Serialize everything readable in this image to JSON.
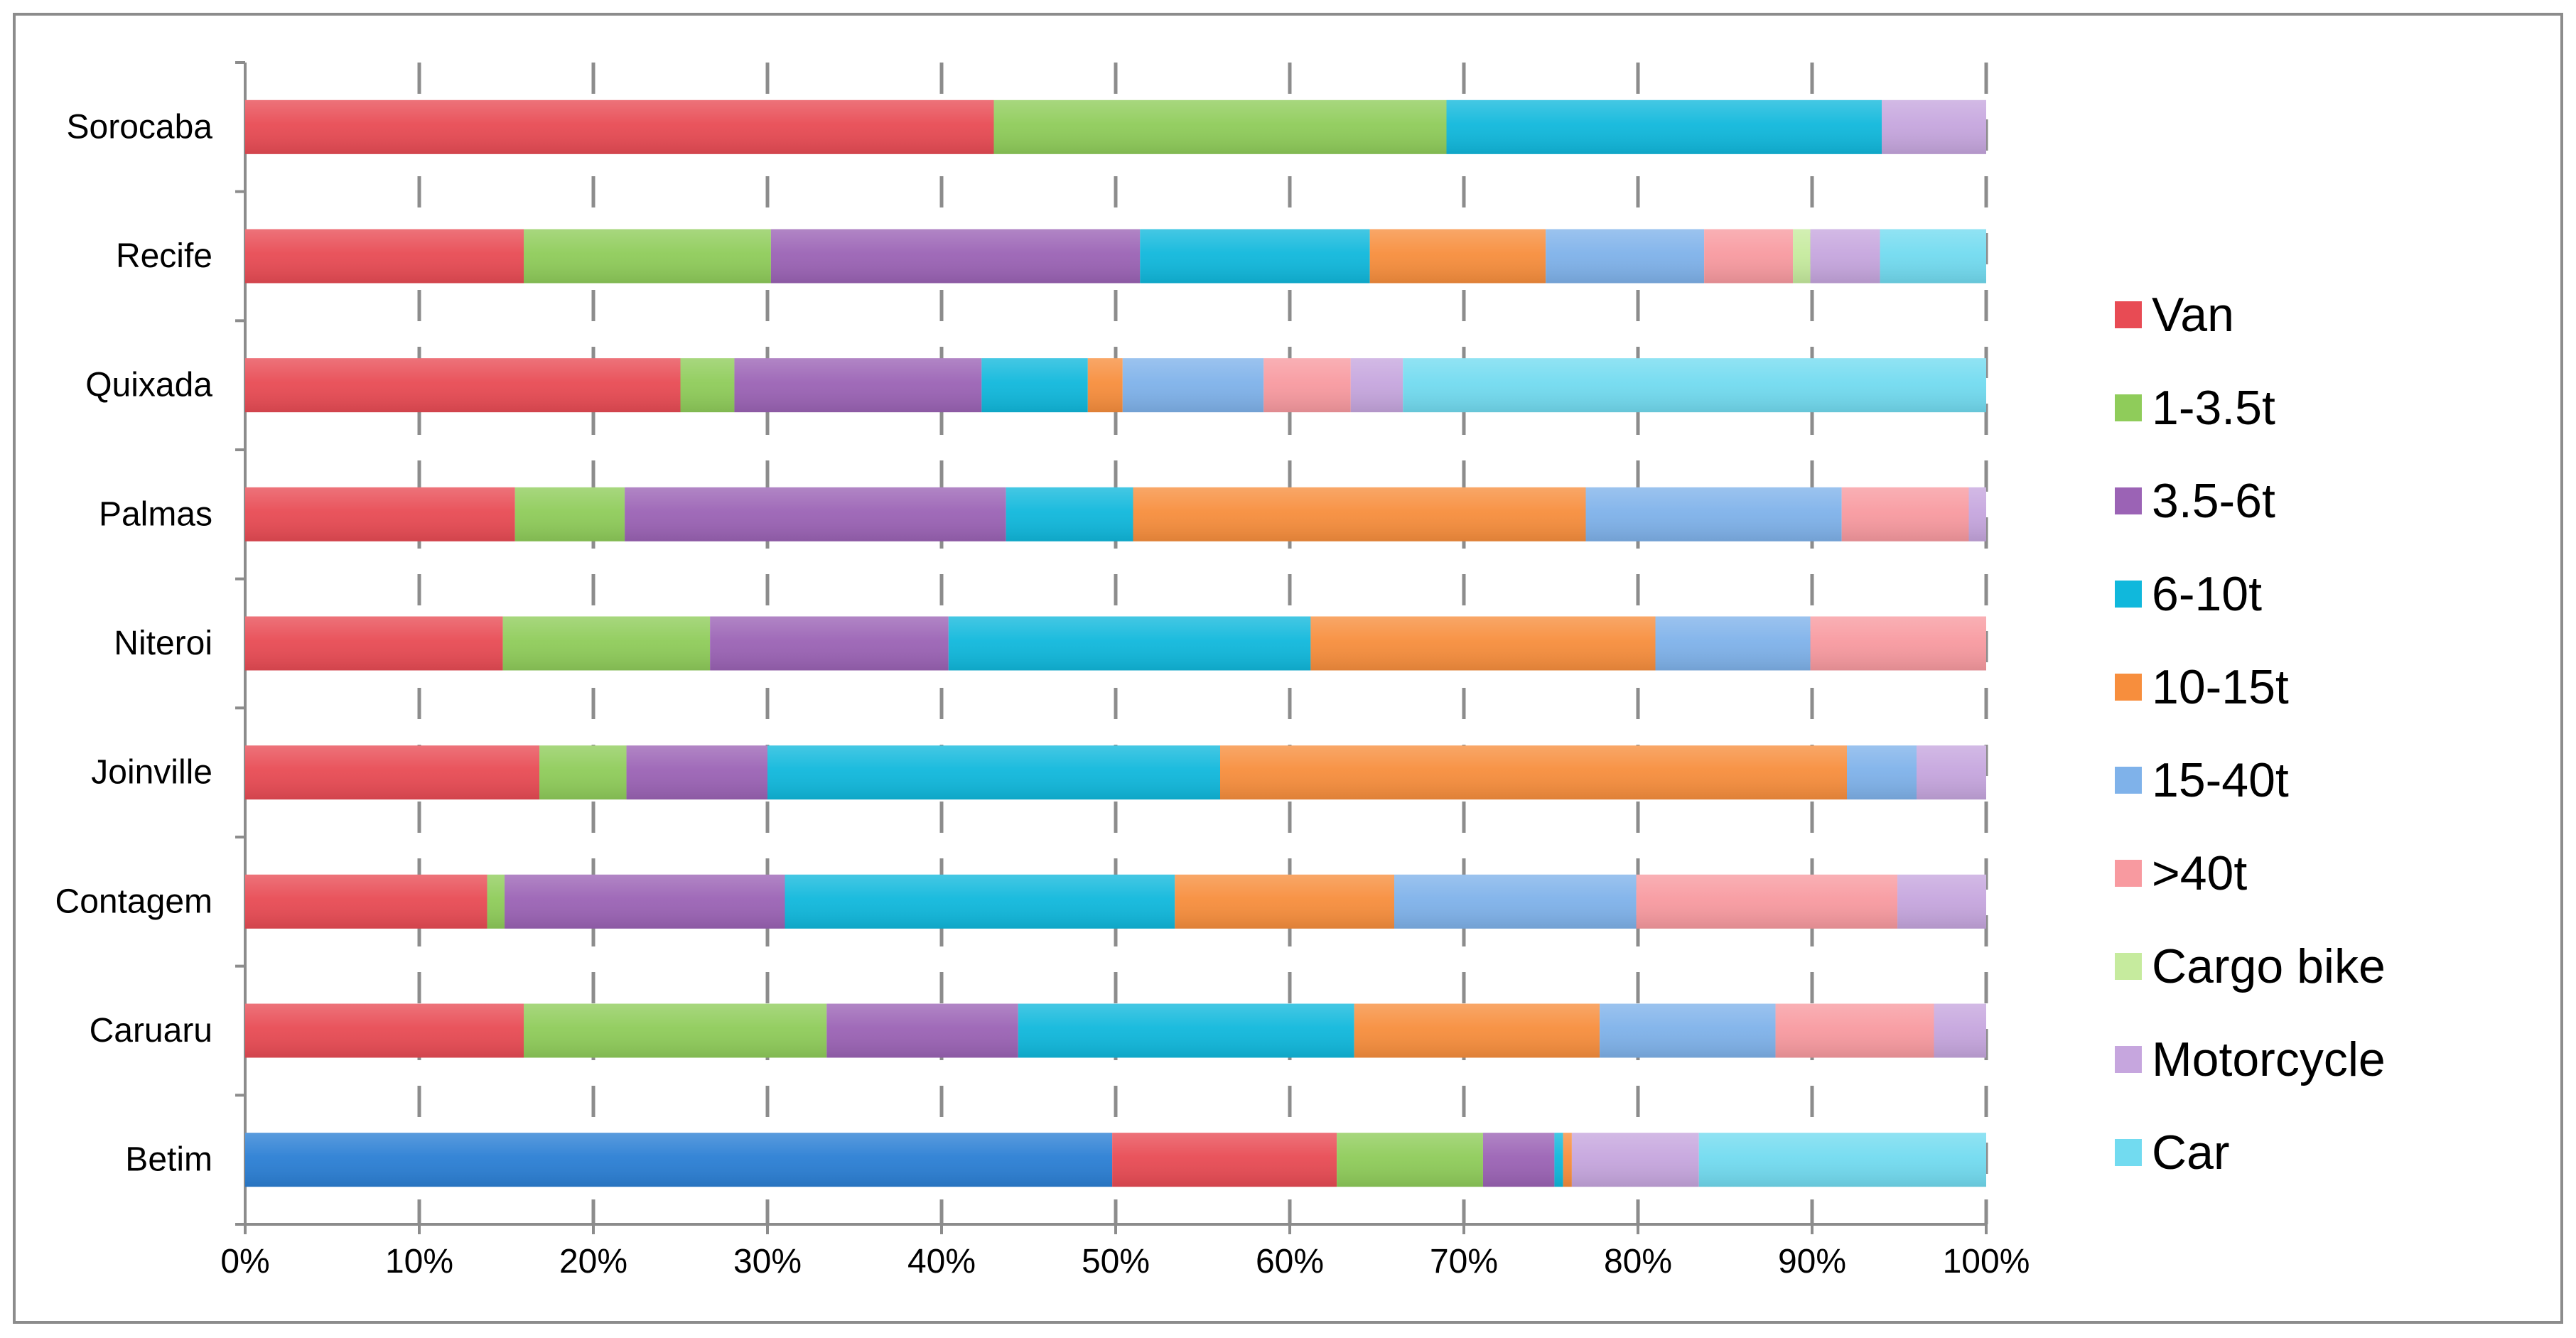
{
  "chart_data": {
    "type": "bar",
    "orientation": "horizontal",
    "stacked": "percent",
    "title": "",
    "xlabel": "",
    "ylabel": "",
    "xlim": [
      0,
      100
    ],
    "x_ticks": [
      "0%",
      "10%",
      "20%",
      "30%",
      "40%",
      "50%",
      "60%",
      "70%",
      "80%",
      "90%",
      "100%"
    ],
    "grid": "vertical dashed",
    "legend_position": "right",
    "categories": [
      "Sorocaba",
      "Recife",
      "Quixada",
      "Palmas",
      "Niteroi",
      "Joinville",
      "Contagem",
      "Caruaru",
      "Betim"
    ],
    "series": [
      {
        "name": "Van",
        "color": "#e84b54",
        "legend": true,
        "values": [
          43.0,
          16.0,
          25.0,
          15.5,
          14.8,
          16.9,
          13.9,
          16.0,
          12.9
        ]
      },
      {
        "name": "1-3.5t",
        "color": "#8fcc5a",
        "legend": true,
        "values": [
          26.0,
          14.2,
          3.1,
          6.3,
          11.9,
          5.0,
          1.0,
          17.4,
          8.4
        ]
      },
      {
        "name": "3.5-6t",
        "color": "#9b63b5",
        "legend": true,
        "values": [
          0,
          21.2,
          14.2,
          21.9,
          13.7,
          8.1,
          16.1,
          11.0,
          4.1
        ]
      },
      {
        "name": "6-10t",
        "color": "#10b8dc",
        "legend": true,
        "values": [
          25.0,
          13.2,
          6.1,
          7.3,
          20.8,
          26.0,
          22.4,
          19.3,
          0.5
        ]
      },
      {
        "name": "10-15t",
        "color": "#f78e3d",
        "legend": true,
        "values": [
          0,
          10.1,
          2.0,
          26.0,
          19.8,
          36.0,
          12.6,
          14.1,
          0.5
        ]
      },
      {
        "name": "15-40t",
        "color": "#7fb2ea",
        "legend": true,
        "values": [
          0,
          9.1,
          8.1,
          14.7,
          8.9,
          4.0,
          13.9,
          10.1,
          0
        ]
      },
      {
        "name": ">40t",
        "color": "#f89aa0",
        "legend": true,
        "values": [
          0,
          5.1,
          5.0,
          7.3,
          10.2,
          0,
          15.0,
          9.1,
          0
        ]
      },
      {
        "name": "Cargo bike",
        "color": "#c6eb9e",
        "legend": true,
        "values": [
          0,
          1.0,
          0,
          0,
          0,
          0,
          0,
          0,
          0
        ]
      },
      {
        "name": "Motorcycle",
        "color": "#c6a6de",
        "legend": true,
        "values": [
          6.0,
          4.0,
          3.0,
          1.0,
          0,
          4.0,
          5.1,
          3.0,
          7.3
        ]
      },
      {
        "name": "Car",
        "color": "#72dbf0",
        "legend": true,
        "values": [
          0,
          6.1,
          33.5,
          0,
          0,
          0,
          0,
          0,
          16.5
        ]
      },
      {
        "name": "",
        "color": "#2b7fd4",
        "legend": false,
        "values": [
          0,
          0,
          0,
          0,
          0,
          0,
          0,
          0,
          49.8
        ]
      }
    ],
    "stack_order": [
      10,
      0,
      1,
      2,
      3,
      4,
      5,
      6,
      7,
      8,
      9
    ]
  }
}
